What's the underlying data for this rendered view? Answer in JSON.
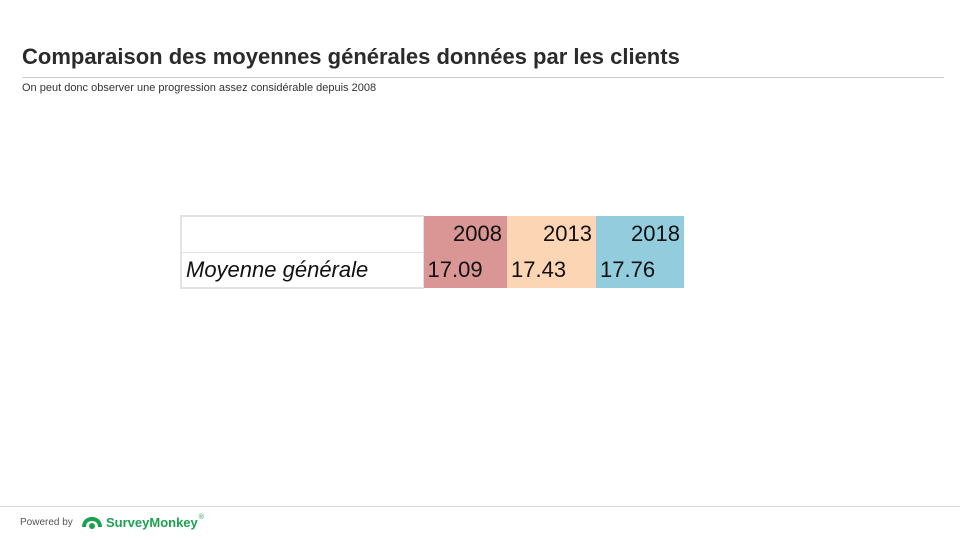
{
  "header": {
    "title": "Comparaison des moyennes générales données par les clients",
    "subtitle": "On peut donc observer une progression assez considérable depuis 2008"
  },
  "chart_data": {
    "type": "table",
    "columns": [
      "2008",
      "2013",
      "2018"
    ],
    "column_colors": [
      "#d99694",
      "#fcd5b5",
      "#93cddd"
    ],
    "rows": [
      {
        "label": "Moyenne générale",
        "values": [
          "17.09",
          "17.43",
          "17.76"
        ]
      }
    ]
  },
  "footer": {
    "powered_by": "Powered by",
    "brand": "SurveyMonkey",
    "brand_mark": "®",
    "brand_color": "#1aa251"
  }
}
